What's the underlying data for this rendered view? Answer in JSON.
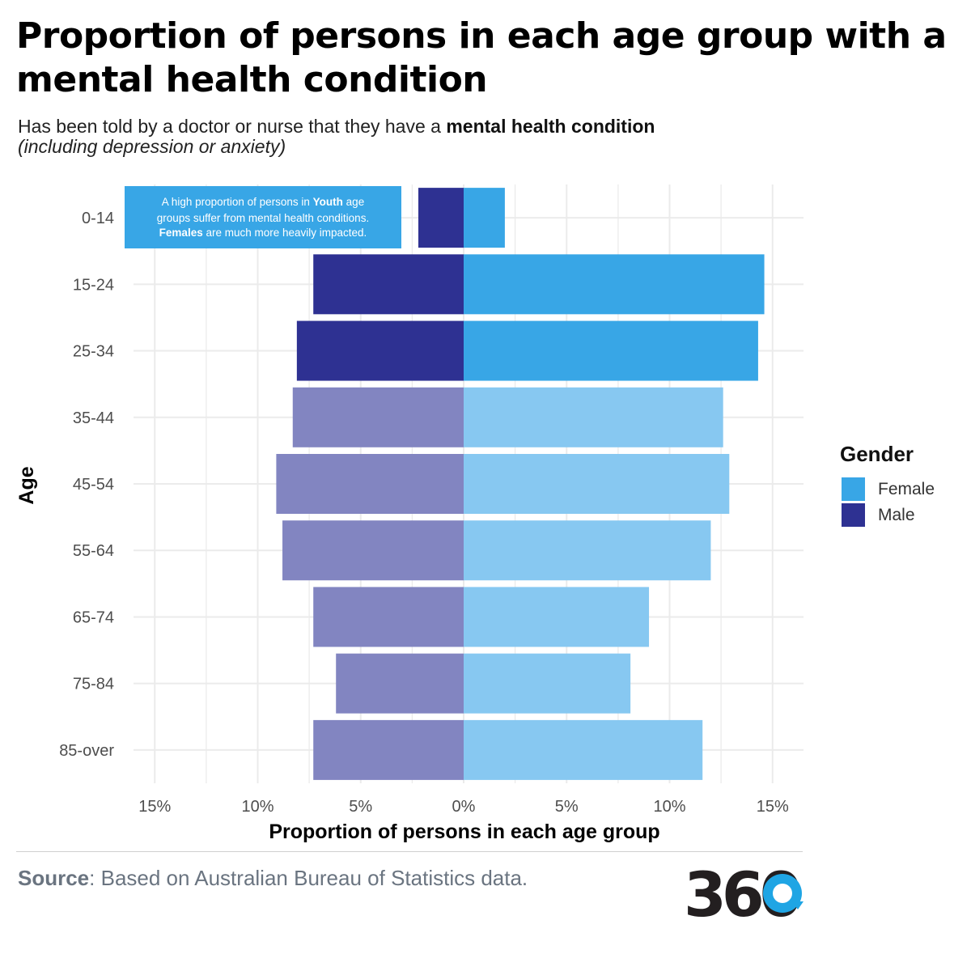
{
  "title": "Proportion of persons in each age group with a mental health condition",
  "subtitle": {
    "prefix": "Has been told by a doctor or nurse that they have a ",
    "bold": "mental health condition",
    "italic": "(including depression or anxiety)"
  },
  "annotation": {
    "line1_prefix": "A high proportion of persons in ",
    "line1_bold": "Youth",
    "line1_suffix": " age",
    "line2": "groups suffer from mental health conditions.",
    "line3_bold": "Females",
    "line3_suffix": " are much more heavily impacted."
  },
  "legend": {
    "title": "Gender",
    "items": [
      {
        "label": "Female",
        "color": "#38a6e6"
      },
      {
        "label": "Male",
        "color": "#2e3192"
      }
    ]
  },
  "source": {
    "bold": "Source",
    "text": ": Based on Australian Bureau of Statistics data."
  },
  "logo": {
    "text": "360",
    "icon": "360-logo"
  },
  "colors": {
    "female_highlight": "#38a6e6",
    "male_highlight": "#2e3192",
    "female_muted": "#87c8f1",
    "male_muted": "#8285c1",
    "grid": "#ebebeb"
  },
  "chart_data": {
    "type": "bar",
    "orientation": "horizontal-diverging",
    "xlabel": "Proportion of persons in each age group",
    "ylabel": "Age",
    "categories": [
      "0-14",
      "15-24",
      "25-34",
      "35-44",
      "45-54",
      "55-64",
      "65-74",
      "75-84",
      "85-over"
    ],
    "series": [
      {
        "name": "Female",
        "values": [
          2.0,
          14.6,
          14.3,
          12.6,
          12.9,
          12.0,
          9.0,
          8.1,
          11.6
        ]
      },
      {
        "name": "Male",
        "values": [
          2.2,
          7.3,
          8.1,
          8.3,
          9.1,
          8.8,
          7.3,
          6.2,
          7.3
        ]
      }
    ],
    "highlighted_categories": [
      "0-14",
      "15-24",
      "25-34"
    ],
    "xlim": [
      -15.5,
      16.5
    ],
    "x_ticks": [
      -15,
      -10,
      -5,
      0,
      5,
      10,
      15
    ],
    "x_tick_labels": [
      "15%",
      "10%",
      "5%",
      "0%",
      "5%",
      "10%",
      "15%"
    ],
    "grid": true,
    "legend_position": "right"
  }
}
